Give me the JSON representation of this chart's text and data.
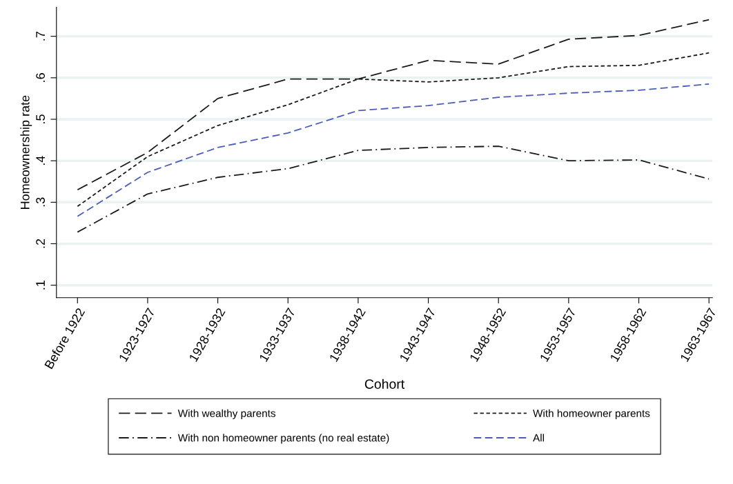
{
  "chart_data": {
    "type": "line",
    "xlabel": "Cohort",
    "ylabel": "Homeownership rate",
    "categories": [
      "Before 1922",
      "1923-1927",
      "1928-1932",
      "1933-1937",
      "1938-1942",
      "1943-1947",
      "1948-1952",
      "1953-1957",
      "1958-1962",
      "1963-1967"
    ],
    "series": [
      {
        "name": "With wealthy parents",
        "color": "#1a1a1a",
        "line_style": "longdash",
        "values": [
          0.33,
          0.42,
          0.55,
          0.597,
          0.597,
          0.642,
          0.633,
          0.693,
          0.702,
          0.74
        ]
      },
      {
        "name": "With homeowner parents",
        "color": "#1a1a1a",
        "line_style": "shortdash",
        "values": [
          0.29,
          0.41,
          0.485,
          0.535,
          0.597,
          0.59,
          0.6,
          0.627,
          0.63,
          0.66
        ]
      },
      {
        "name": "With non homeowner parents (no real estate)",
        "color": "#1a1a1a",
        "line_style": "dashdot",
        "values": [
          0.228,
          0.32,
          0.36,
          0.381,
          0.425,
          0.432,
          0.435,
          0.4,
          0.402,
          0.356
        ]
      },
      {
        "name": "All",
        "color": "#4a5cb8",
        "line_style": "dashed",
        "values": [
          0.266,
          0.372,
          0.432,
          0.467,
          0.521,
          0.533,
          0.553,
          0.563,
          0.57,
          0.585
        ]
      }
    ],
    "ylim": [
      0.07,
      0.77
    ],
    "yticks": [
      {
        "value": 0.1,
        "label": ".1"
      },
      {
        "value": 0.2,
        "label": ".2"
      },
      {
        "value": 0.3,
        "label": ".3"
      },
      {
        "value": 0.4,
        "label": ".4"
      },
      {
        "value": 0.5,
        "label": ".5"
      },
      {
        "value": 0.6,
        "label": ".6"
      },
      {
        "value": 0.7,
        "label": ".7"
      }
    ],
    "grid": "y",
    "legend": "bottom",
    "marker": "none"
  }
}
